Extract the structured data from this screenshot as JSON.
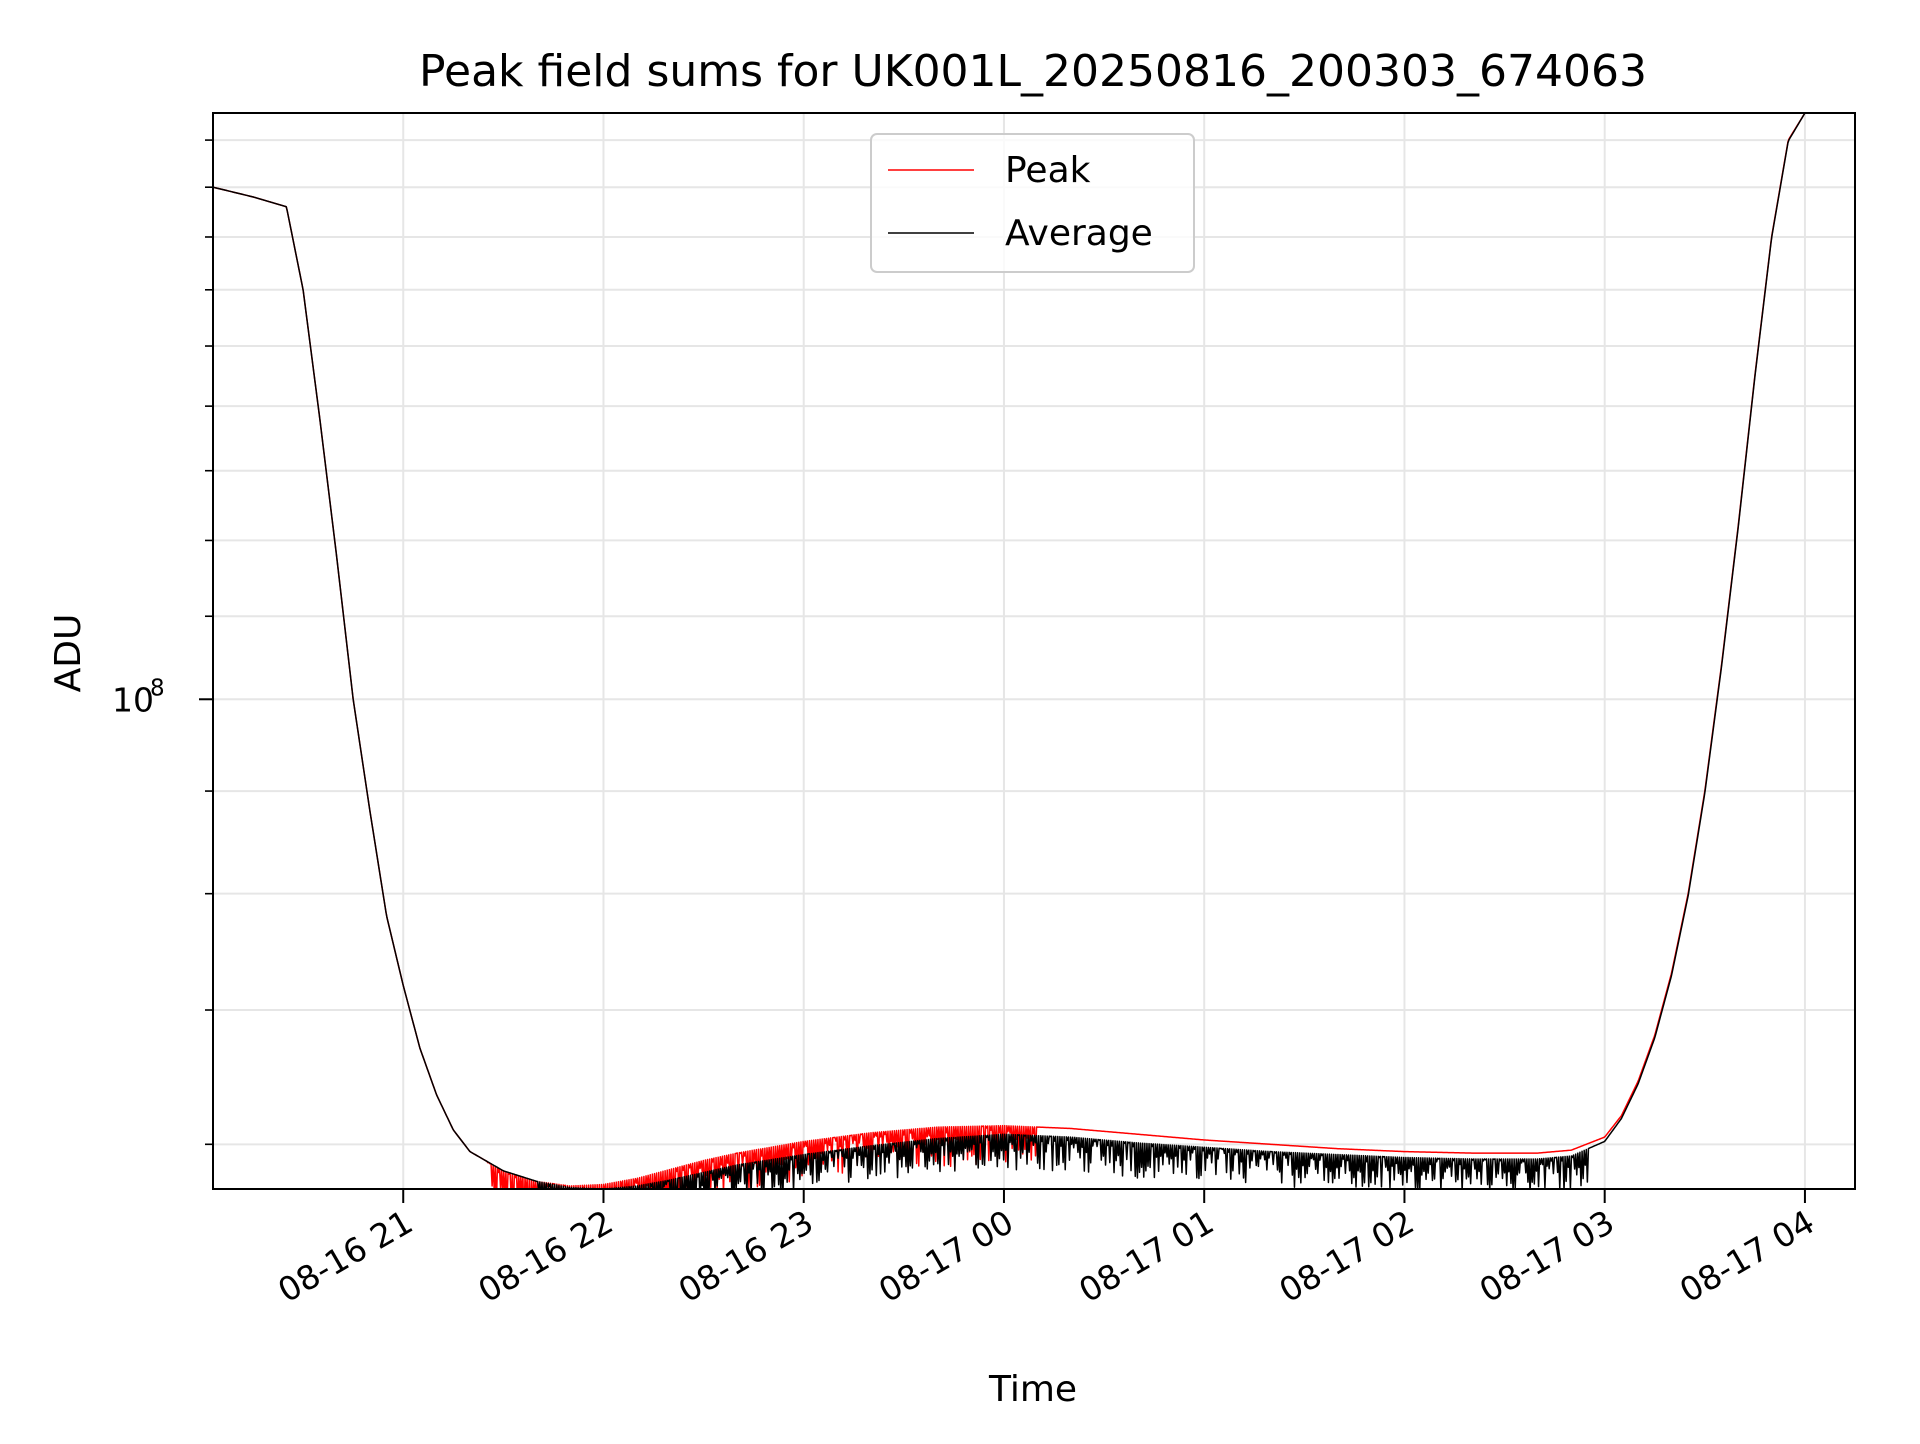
{
  "chart_data": {
    "type": "line",
    "title": "Peak field sums for UK001L_20250816_200303_674063",
    "xlabel": "Time",
    "ylabel": "ADU",
    "y_scale": "log",
    "grid": true,
    "legend_position": "upper center",
    "xlim": [
      "2025-08-16 20:03",
      "2025-08-17 04:15"
    ],
    "ylim": [
      57000000,
      196000000
    ],
    "x_ticks": [
      "2025-08-16 21:00",
      "2025-08-16 22:00",
      "2025-08-16 23:00",
      "2025-08-17 00:00",
      "2025-08-17 01:00",
      "2025-08-17 02:00",
      "2025-08-17 03:00",
      "2025-08-17 04:00"
    ],
    "x_tick_labels": [
      "08-16 21",
      "08-16 22",
      "08-16 23",
      "08-17 00",
      "08-17 01",
      "08-17 02",
      "08-17 03",
      "08-17 04"
    ],
    "y_major_ticks": [
      100000000
    ],
    "y_major_tick_labels": [
      "10"
    ],
    "y_major_tick_exponent": "8",
    "y_minor_ticks": [
      60000000,
      70000000,
      80000000,
      90000000,
      110000000,
      120000000,
      130000000,
      140000000,
      150000000,
      160000000,
      170000000,
      180000000,
      190000000
    ],
    "x": [
      "2025-08-16 20:03",
      "2025-08-16 20:15",
      "2025-08-16 20:25",
      "2025-08-16 20:30",
      "2025-08-16 20:35",
      "2025-08-16 20:40",
      "2025-08-16 20:45",
      "2025-08-16 20:50",
      "2025-08-16 20:55",
      "2025-08-16 21:00",
      "2025-08-16 21:05",
      "2025-08-16 21:10",
      "2025-08-16 21:15",
      "2025-08-16 21:20",
      "2025-08-16 21:30",
      "2025-08-16 21:40",
      "2025-08-16 21:50",
      "2025-08-16 22:00",
      "2025-08-16 22:10",
      "2025-08-16 22:20",
      "2025-08-16 22:30",
      "2025-08-16 22:40",
      "2025-08-16 23:00",
      "2025-08-16 23:20",
      "2025-08-16 23:40",
      "2025-08-17 00:00",
      "2025-08-17 00:20",
      "2025-08-17 00:40",
      "2025-08-17 01:00",
      "2025-08-17 01:20",
      "2025-08-17 01:40",
      "2025-08-17 02:00",
      "2025-08-17 02:20",
      "2025-08-17 02:40",
      "2025-08-17 02:50",
      "2025-08-17 03:00",
      "2025-08-17 03:05",
      "2025-08-17 03:10",
      "2025-08-17 03:15",
      "2025-08-17 03:20",
      "2025-08-17 03:25",
      "2025-08-17 03:30",
      "2025-08-17 03:35",
      "2025-08-17 03:40",
      "2025-08-17 03:45",
      "2025-08-17 03:50",
      "2025-08-17 03:55",
      "2025-08-17 04:00"
    ],
    "series": [
      {
        "name": "Peak",
        "color": "#ff0000",
        "noise": 0.045,
        "noise_from": "2025-08-16 21:25",
        "noise_to": "2025-08-17 00:10",
        "values": [
          180000000,
          178000000,
          176000000,
          160000000,
          138000000,
          118000000,
          100000000,
          88000000,
          78000000,
          72000000,
          67000000,
          63500000,
          61000000,
          59500000,
          58200000,
          57500000,
          57200000,
          57300000,
          57700000,
          58300000,
          58900000,
          59400000,
          60200000,
          60800000,
          61200000,
          61300000,
          61100000,
          60700000,
          60300000,
          60000000,
          59700000,
          59500000,
          59400000,
          59400000,
          59600000,
          60500000,
          62000000,
          64500000,
          68000000,
          73000000,
          80000000,
          90000000,
          104000000,
          122000000,
          145000000,
          170000000,
          190000000,
          196000000
        ]
      },
      {
        "name": "Average",
        "color": "#000000",
        "noise": 0.04,
        "noise_from": "2025-08-16 21:40",
        "noise_to": "2025-08-17 02:55",
        "values": [
          180000000,
          178000000,
          176000000,
          160000000,
          138000000,
          118000000,
          100000000,
          88000000,
          78000000,
          72000000,
          67000000,
          63500000,
          61000000,
          59500000,
          58200000,
          57500000,
          57100000,
          57000000,
          57200000,
          57600000,
          58100000,
          58600000,
          59300000,
          59900000,
          60400000,
          60700000,
          60500000,
          60100000,
          59800000,
          59500000,
          59300000,
          59100000,
          59000000,
          59000000,
          59200000,
          60200000,
          61800000,
          64300000,
          67800000,
          72800000,
          79800000,
          89800000,
          103800000,
          121800000,
          144800000,
          169800000,
          189800000,
          196000000
        ]
      }
    ]
  }
}
